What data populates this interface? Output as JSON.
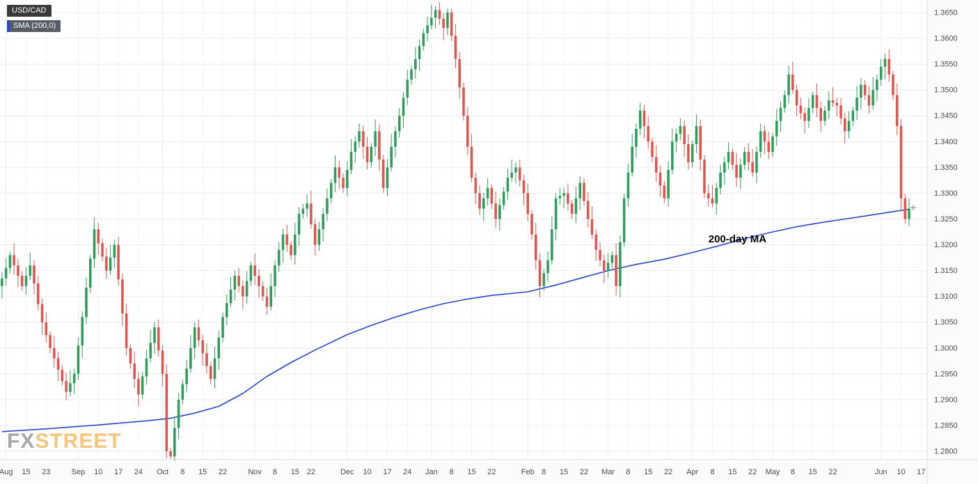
{
  "legend": {
    "symbol": "USD/CAD",
    "sma_label": "SMA (200,0)"
  },
  "watermark": {
    "part1": "FX",
    "part2": "STREET"
  },
  "colors": {
    "up": "#2E9E5B",
    "down": "#E0564F",
    "sma": "#2946C8",
    "grid": "#ECECEC",
    "grid_minor": "#F4F4F4",
    "axis_text": "#4A4A4A",
    "bg": "#FFFFFF",
    "axis_bg": "#FBFBFB",
    "border": "#DDDDDD",
    "annotation": "#000000",
    "watermark_fx": "#97999C",
    "watermark_street": "#F4BC63",
    "marker": "#777777"
  },
  "chart_data": {
    "type": "candlestick",
    "symbol": "USD/CAD",
    "title": "USD/CAD daily candlesticks with 200-day simple moving average",
    "slots": 231,
    "first_open": 1.312,
    "open_rule": "previous_close",
    "closes": [
      1.3135,
      1.3155,
      1.318,
      1.316,
      1.314,
      1.312,
      1.314,
      1.316,
      1.3125,
      1.3085,
      1.305,
      1.3025,
      1.3,
      1.298,
      1.2958,
      1.2936,
      1.2915,
      1.2932,
      1.295,
      1.3005,
      1.306,
      1.3117,
      1.3173,
      1.323,
      1.3203,
      1.3177,
      1.315,
      1.3175,
      1.32,
      1.3133,
      1.3067,
      1.3,
      1.297,
      1.294,
      1.291,
      1.2945,
      1.298,
      1.301,
      1.304,
      1.2995,
      1.295,
      1.28,
      1.279,
      1.2845,
      1.29,
      1.293,
      1.296,
      1.3,
      1.304,
      1.3015,
      1.299,
      1.2965,
      1.294,
      1.298,
      1.302,
      1.306,
      1.3087,
      1.3113,
      1.314,
      1.312,
      1.31,
      1.313,
      1.316,
      1.314,
      1.312,
      1.31,
      1.308,
      1.312,
      1.316,
      1.319,
      1.322,
      1.32,
      1.318,
      1.322,
      1.326,
      1.327,
      1.328,
      1.324,
      1.32,
      1.323,
      1.326,
      1.329,
      1.332,
      1.335,
      1.333,
      1.331,
      1.3345,
      1.338,
      1.34,
      1.342,
      1.339,
      1.336,
      1.339,
      1.342,
      1.3365,
      1.331,
      1.335,
      1.339,
      1.342,
      1.345,
      1.3485,
      1.352,
      1.354,
      1.356,
      1.3585,
      1.361,
      1.3625,
      1.364,
      1.3655,
      1.3638,
      1.362,
      1.365,
      1.3605,
      1.356,
      1.3505,
      1.345,
      1.339,
      1.333,
      1.33,
      1.327,
      1.329,
      1.331,
      1.328,
      1.325,
      1.3277,
      1.3303,
      1.333,
      1.334,
      1.335,
      1.3325,
      1.33,
      1.326,
      1.322,
      1.317,
      1.312,
      1.3145,
      1.317,
      1.323,
      1.329,
      1.3295,
      1.33,
      1.328,
      1.326,
      1.329,
      1.332,
      1.3285,
      1.325,
      1.322,
      1.319,
      1.317,
      1.315,
      1.3165,
      1.318,
      1.312,
      1.3205,
      1.329,
      1.334,
      1.339,
      1.3425,
      1.346,
      1.343,
      1.34,
      1.337,
      1.334,
      1.3315,
      1.329,
      1.3345,
      1.34,
      1.3415,
      1.343,
      1.3395,
      1.336,
      1.3395,
      1.343,
      1.3365,
      1.33,
      1.329,
      1.328,
      1.331,
      1.334,
      1.336,
      1.338,
      1.3355,
      1.333,
      1.3355,
      1.338,
      1.336,
      1.334,
      1.338,
      1.342,
      1.34,
      1.338,
      1.341,
      1.344,
      1.3465,
      1.349,
      1.353,
      1.35,
      1.347,
      1.3455,
      1.344,
      1.3465,
      1.349,
      1.3465,
      1.344,
      1.346,
      1.348,
      1.3475,
      1.347,
      1.3445,
      1.342,
      1.344,
      1.346,
      1.3485,
      1.351,
      1.349,
      1.347,
      1.35,
      1.352,
      1.3545,
      1.356,
      1.353,
      1.349,
      1.343,
      1.329,
      1.325,
      1.327
    ],
    "wick_high": [
      0.0011,
      0.0019,
      0.0007,
      0.0023,
      0.0013,
      0.0009,
      0.0017,
      0.0025,
      0.001,
      0.0015
    ],
    "wick_low": [
      0.0016,
      0.0008,
      0.0021,
      0.0012,
      0.0024,
      0.0014,
      0.001,
      0.0018,
      0.0022,
      0.0009
    ],
    "overrides": {
      "42": {
        "low": 1.2785
      },
      "108": {
        "high": 1.3663
      },
      "111": {
        "high": 1.3658
      },
      "226": {
        "high": 1.329,
        "low": 1.3236
      }
    },
    "sma": {
      "name": "SMA (200,0)",
      "label_annotation": "200-day MA",
      "points": [
        [
          0,
          1.2838
        ],
        [
          12,
          1.2844
        ],
        [
          24,
          1.2851
        ],
        [
          36,
          1.2859
        ],
        [
          42,
          1.2864
        ],
        [
          48,
          1.2874
        ],
        [
          54,
          1.2887
        ],
        [
          60,
          1.2912
        ],
        [
          66,
          1.2945
        ],
        [
          72,
          1.2972
        ],
        [
          78,
          1.2996
        ],
        [
          86,
          1.3026
        ],
        [
          92,
          1.3044
        ],
        [
          98,
          1.306
        ],
        [
          104,
          1.3074
        ],
        [
          110,
          1.3086
        ],
        [
          116,
          1.3095
        ],
        [
          122,
          1.3102
        ],
        [
          131,
          1.3109
        ],
        [
          138,
          1.3122
        ],
        [
          144,
          1.3135
        ],
        [
          151,
          1.315
        ],
        [
          158,
          1.3162
        ],
        [
          165,
          1.3172
        ],
        [
          172,
          1.3185
        ],
        [
          178,
          1.3197
        ],
        [
          184,
          1.321
        ],
        [
          192,
          1.3225
        ],
        [
          198,
          1.3235
        ],
        [
          204,
          1.3243
        ],
        [
          210,
          1.325
        ],
        [
          216,
          1.3257
        ],
        [
          221,
          1.3263
        ],
        [
          226,
          1.3269
        ]
      ]
    },
    "annotation": {
      "text": "200-day MA",
      "i": 176,
      "price": 1.3205
    },
    "marker": {
      "i": 226,
      "price": 1.3272
    },
    "y_axis": {
      "min": 1.28,
      "max": 1.365,
      "step": 0.005,
      "labels": [
        "1.3650",
        "1.3600",
        "1.3550",
        "1.3500",
        "1.3450",
        "1.3400",
        "1.3350",
        "1.3300",
        "1.3250",
        "1.3200",
        "1.3150",
        "1.3100",
        "1.3050",
        "1.3000",
        "1.2950",
        "1.2900",
        "1.2850",
        "1.2800"
      ]
    },
    "x_ticks": [
      [
        "Aug",
        1,
        1
      ],
      [
        "15",
        6,
        0
      ],
      [
        "23",
        11,
        0
      ],
      [
        "Sep",
        19,
        1
      ],
      [
        "10",
        24,
        0
      ],
      [
        "17",
        29,
        0
      ],
      [
        "24",
        34,
        0
      ],
      [
        "Oct",
        40,
        1
      ],
      [
        "8",
        45,
        0
      ],
      [
        "15",
        50,
        0
      ],
      [
        "22",
        55,
        0
      ],
      [
        "Nov",
        63,
        1
      ],
      [
        "8",
        68,
        0
      ],
      [
        "15",
        73,
        0
      ],
      [
        "22",
        77,
        0
      ],
      [
        "Dec",
        86,
        1
      ],
      [
        "10",
        91,
        0
      ],
      [
        "17",
        96,
        0
      ],
      [
        "24",
        101,
        0
      ],
      [
        "Jan",
        107,
        1
      ],
      [
        "8",
        112,
        0
      ],
      [
        "15",
        117,
        0
      ],
      [
        "22",
        122,
        0
      ],
      [
        "Feb",
        131,
        1
      ],
      [
        "8",
        135,
        0
      ],
      [
        "15",
        140,
        0
      ],
      [
        "22",
        145,
        0
      ],
      [
        "Mar",
        151,
        1
      ],
      [
        "8",
        156,
        0
      ],
      [
        "15",
        161,
        0
      ],
      [
        "22",
        166,
        0
      ],
      [
        "Apr",
        172,
        1
      ],
      [
        "8",
        177,
        0
      ],
      [
        "15",
        182,
        0
      ],
      [
        "22",
        187,
        0
      ],
      [
        "May",
        192,
        1
      ],
      [
        "8",
        197,
        0
      ],
      [
        "15",
        202,
        0
      ],
      [
        "22",
        207,
        0
      ],
      [
        "Jun",
        219,
        1
      ],
      [
        "10",
        224,
        0
      ],
      [
        "17",
        229,
        0
      ]
    ]
  }
}
